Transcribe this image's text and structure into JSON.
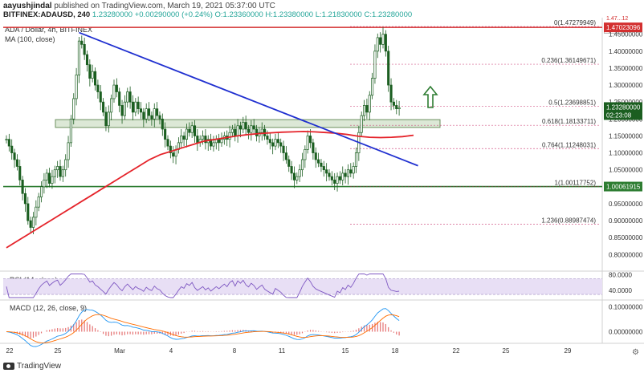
{
  "header": {
    "author": "aayushjindal",
    "published_text": "published on TradingView.com, March 19, 2021 05:37:00 UTC",
    "symbol": "BITFINEX:ADAUSD, 240",
    "ohlc": "1.23280000 +0.00290000 (+0.24%) O:1.23360000 H:1.23380000 L:1.21830000 C:1.23280000"
  },
  "legend": {
    "pair": "ADA / Dollar, 4h, BITFINEX",
    "ma": "MA (100, close)",
    "rsi": "RSI (14, close)",
    "macd": "MACD (12, 26, close, 9)"
  },
  "branding": {
    "logo_text": "TradingView",
    "currency": "USD"
  },
  "colors": {
    "up": "#26a69a",
    "down": "#ef5350",
    "candle": "#1b5e20",
    "trend": "#1f2fd0",
    "ma": "#e5232a",
    "resistance": "#d32f2f",
    "support": "#2e7d32",
    "zone_fill": "#dce8d6",
    "rsi_line": "#7e57c2",
    "rsi_band": "#e8dff5",
    "macd": "#2196f3",
    "signal": "#ff6d00",
    "hist": "#e57373",
    "fib": "#c2185b",
    "arrow": "#2e7d32"
  },
  "chart_data": {
    "type": "candlestick",
    "title": "ADA / Dollar, 4h, BITFINEX",
    "x_ticks": [
      "22",
      "25",
      "Mar",
      "4",
      "8",
      "11",
      "15",
      "18",
      "22",
      "25",
      "29"
    ],
    "y_ticks": [
      "1.45000000",
      "1.40000000",
      "1.35000000",
      "1.30000000",
      "1.25000000",
      "1.20000000",
      "1.15000000",
      "1.10000000",
      "1.05000000",
      "1.00000000",
      "0.95000000",
      "0.90000000",
      "0.85000000",
      "0.80000000"
    ],
    "ylim": [
      0.77,
      1.48
    ],
    "price_tags": {
      "resistance": "1.47023096",
      "current": "1.23280000",
      "countdown": "02:23:08",
      "support": "1.00061915",
      "top_label": "1.47...12"
    },
    "levels": {
      "resistance": 1.47023,
      "support": 1.00062
    },
    "fibonacci": [
      {
        "label": "0(1.47279949)",
        "value": 1.4728
      },
      {
        "label": "0.236(1.36149671)",
        "value": 1.3615
      },
      {
        "label": "0.5(1.23698851)",
        "value": 1.237
      },
      {
        "label": "0.618(1.18133711)",
        "value": 1.1813
      },
      {
        "label": "0.764(1.11248031)",
        "value": 1.1125
      },
      {
        "label": "1(1.00117752)",
        "value": 1.0012
      },
      {
        "label": "1.236(0.88987474)",
        "value": 0.8899
      }
    ],
    "support_zone": [
      1.175,
      1.198
    ],
    "trendline": {
      "from": {
        "bar": 27,
        "price": 1.455
      },
      "to": {
        "bar": 153,
        "price": 1.062
      }
    },
    "close_series": [
      1.14,
      1.12,
      1.1,
      1.08,
      1.06,
      1.02,
      0.98,
      0.95,
      0.9,
      0.88,
      0.91,
      0.94,
      0.97,
      1.0,
      1.02,
      1.04,
      1.01,
      1.03,
      1.05,
      1.06,
      1.03,
      1.05,
      1.08,
      1.13,
      1.2,
      1.26,
      1.33,
      1.43,
      1.42,
      1.39,
      1.36,
      1.32,
      1.34,
      1.3,
      1.28,
      1.25,
      1.22,
      1.18,
      1.22,
      1.26,
      1.3,
      1.28,
      1.24,
      1.21,
      1.25,
      1.28,
      1.25,
      1.22,
      1.25,
      1.23,
      1.22,
      1.2,
      1.23,
      1.21,
      1.2,
      1.23,
      1.21,
      1.2,
      1.17,
      1.14,
      1.12,
      1.1,
      1.09,
      1.11,
      1.13,
      1.15,
      1.14,
      1.17,
      1.16,
      1.18,
      1.15,
      1.13,
      1.14,
      1.15,
      1.13,
      1.14,
      1.12,
      1.13,
      1.14,
      1.13,
      1.14,
      1.15,
      1.14,
      1.16,
      1.17,
      1.15,
      1.18,
      1.17,
      1.19,
      1.17,
      1.16,
      1.18,
      1.17,
      1.15,
      1.16,
      1.17,
      1.15,
      1.14,
      1.13,
      1.12,
      1.14,
      1.13,
      1.12,
      1.1,
      1.08,
      1.06,
      1.04,
      1.02,
      1.03,
      1.05,
      1.08,
      1.11,
      1.15,
      1.13,
      1.1,
      1.08,
      1.07,
      1.06,
      1.05,
      1.04,
      1.03,
      1.02,
      1.01,
      1.03,
      1.02,
      1.04,
      1.03,
      1.05,
      1.04,
      1.06,
      1.1,
      1.16,
      1.21,
      1.24,
      1.22,
      1.27,
      1.32,
      1.4,
      1.44,
      1.42,
      1.45,
      1.4,
      1.3,
      1.25,
      1.24,
      1.23,
      1.233
    ],
    "ma100_series": [
      0.82,
      0.84,
      0.86,
      0.88,
      0.9,
      0.92,
      0.94,
      0.96,
      0.98,
      1.0,
      1.02,
      1.04,
      1.06,
      1.08,
      1.095,
      1.105,
      1.115,
      1.125,
      1.135,
      1.14,
      1.145,
      1.15,
      1.154,
      1.157,
      1.159,
      1.161,
      1.162,
      1.163,
      1.162,
      1.16,
      1.158,
      1.154,
      1.149,
      1.146,
      1.145,
      1.146,
      1.148,
      1.152
    ],
    "rsi": {
      "ylim": [
        20,
        85
      ],
      "ticks": [
        "80.0000",
        "40.0000"
      ],
      "band": [
        30,
        70
      ]
    },
    "macd": {
      "ticks": [
        "0.10000000",
        "0.00000000"
      ],
      "ylim": [
        -0.04,
        0.12
      ]
    }
  }
}
